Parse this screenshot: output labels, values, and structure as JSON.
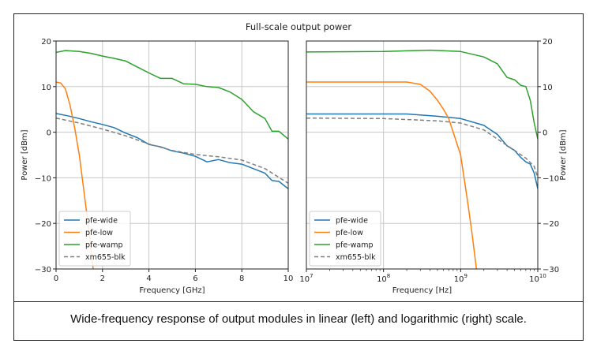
{
  "figure": {
    "suptitle": "Full-scale output power",
    "caption": "Wide-frequency response of output modules in linear (left) and logarithmic (right) scale."
  },
  "colors": {
    "pfe-wide": "#1f77b4",
    "pfe-low": "#ff7f0e",
    "pfe-wamp": "#2ca02c",
    "xm655-blk": "#7f7f7f"
  },
  "chart_data": [
    {
      "type": "line",
      "xlabel": "Frequency [GHz]",
      "ylabel": "Power [dBm]",
      "xscale": "linear",
      "xlim": [
        0,
        10
      ],
      "ylim": [
        -30,
        20
      ],
      "xticks": [
        "0",
        "2",
        "4",
        "6",
        "8",
        "10"
      ],
      "yticks": [
        "20",
        "10",
        "0",
        "−10",
        "−20",
        "−30"
      ],
      "grid": true,
      "legend": "lower-left",
      "series": [
        {
          "name": "pfe-wide",
          "style": "solid",
          "x": [
            0,
            0.5,
            1,
            1.5,
            2,
            2.5,
            3,
            3.5,
            4,
            4.5,
            5,
            5.5,
            6,
            6.5,
            7,
            7.5,
            8,
            8.5,
            9,
            9.3,
            9.6,
            10
          ],
          "y": [
            4.1,
            3.6,
            3.0,
            2.3,
            1.7,
            1.0,
            -0.2,
            -1.2,
            -2.7,
            -3.2,
            -4.1,
            -4.6,
            -5.3,
            -6.5,
            -6.0,
            -6.7,
            -7.0,
            -8.0,
            -9.0,
            -10.6,
            -10.8,
            -12.4
          ]
        },
        {
          "name": "pfe-low",
          "style": "solid",
          "x": [
            0,
            0.2,
            0.4,
            0.6,
            0.8,
            1.0,
            1.2,
            1.4,
            1.6
          ],
          "y": [
            11,
            10.8,
            9.5,
            6,
            1,
            -5,
            -13,
            -21,
            -30
          ]
        },
        {
          "name": "pfe-wamp",
          "style": "solid",
          "x": [
            0,
            0.4,
            1,
            1.5,
            2,
            2.5,
            3,
            3.5,
            4,
            4.5,
            5,
            5.5,
            6,
            6.5,
            7,
            7.5,
            8,
            8.5,
            9,
            9.3,
            9.6,
            10
          ],
          "y": [
            17.5,
            17.9,
            17.7,
            17.3,
            16.7,
            16.2,
            15.6,
            14.3,
            13,
            11.8,
            11.8,
            10.6,
            10.5,
            10,
            9.8,
            8.8,
            7.2,
            4.5,
            3,
            0.2,
            0.2,
            -1.5
          ]
        },
        {
          "name": "xm655-blk",
          "style": "dashed",
          "x": [
            0,
            1,
            2,
            3,
            4,
            5,
            6,
            7,
            8,
            9,
            10
          ],
          "y": [
            3.1,
            2,
            0.7,
            -0.8,
            -2.6,
            -4,
            -4.9,
            -5.4,
            -6.1,
            -8,
            -11.2
          ]
        }
      ]
    },
    {
      "type": "line",
      "xlabel": "Frequency [Hz]",
      "ylabel": "Power [dBm]",
      "xscale": "log",
      "xlim": [
        10000000.0,
        10000000000.0
      ],
      "ylim": [
        -30,
        20
      ],
      "xticks": [
        "10^7",
        "10^8",
        "10^9",
        "10^10"
      ],
      "yticks": [
        "20",
        "10",
        "0",
        "−10",
        "−20",
        "−30"
      ],
      "grid": true,
      "legend": "lower-left",
      "series": [
        {
          "name": "pfe-wide",
          "style": "solid",
          "x": [
            10000000.0,
            200000000.0,
            500000000.0,
            1000000000.0,
            2000000000.0,
            3000000000.0,
            4000000000.0,
            5000000000.0,
            6000000000.0,
            7000000000.0,
            8000000000.0,
            9000000000.0,
            10000000000.0
          ],
          "y": [
            4,
            4,
            3.5,
            3,
            1.5,
            -0.5,
            -3,
            -4,
            -5.5,
            -6.5,
            -7,
            -9,
            -12.4
          ]
        },
        {
          "name": "pfe-low",
          "style": "solid",
          "x": [
            10000000.0,
            200000000.0,
            300000000.0,
            400000000.0,
            500000000.0,
            600000000.0,
            700000000.0,
            800000000.0,
            1000000000.0,
            1200000000.0,
            1400000000.0,
            1600000000.0
          ],
          "y": [
            11,
            11,
            10.5,
            9,
            7,
            5,
            3,
            0,
            -5,
            -14,
            -22,
            -30
          ]
        },
        {
          "name": "pfe-wamp",
          "style": "solid",
          "x": [
            10000000.0,
            100000000.0,
            400000000.0,
            1000000000.0,
            2000000000.0,
            3000000000.0,
            4000000000.0,
            5000000000.0,
            6000000000.0,
            7000000000.0,
            8000000000.0,
            9000000000.0,
            10000000000.0
          ],
          "y": [
            17.6,
            17.7,
            18,
            17.7,
            16.5,
            15,
            12,
            11.5,
            10.3,
            10,
            7,
            2,
            -1.5
          ]
        },
        {
          "name": "xm655-blk",
          "style": "dashed",
          "x": [
            10000000.0,
            100000000.0,
            500000000.0,
            1000000000.0,
            2000000000.0,
            3000000000.0,
            5000000000.0,
            7000000000.0,
            9000000000.0,
            10000000000.0
          ],
          "y": [
            3.1,
            3,
            2.5,
            2,
            0.5,
            -1.5,
            -4,
            -5.7,
            -7.5,
            -10
          ]
        }
      ]
    }
  ]
}
